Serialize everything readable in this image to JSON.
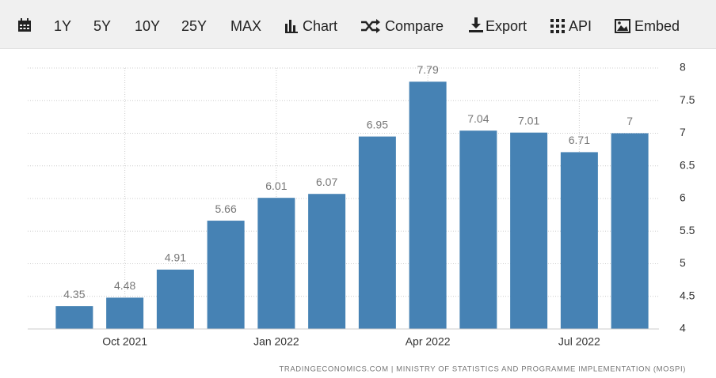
{
  "toolbar": [
    "1Y",
    "5Y",
    "10Y",
    "25Y",
    "MAX",
    "Chart",
    "Compare",
    "Export",
    "API",
    "Embed"
  ],
  "chart_data": {
    "type": "bar",
    "categories": [
      null,
      "Oct 2021",
      null,
      null,
      "Jan 2022",
      null,
      null,
      "Apr 2022",
      null,
      null,
      "Jul 2022",
      null
    ],
    "values": [
      4.35,
      4.48,
      4.91,
      5.66,
      6.01,
      6.07,
      6.95,
      7.79,
      7.04,
      7.01,
      6.71,
      7
    ],
    "color": "#4682b4",
    "ylim": [
      4,
      8
    ],
    "yticks": [
      4,
      4.5,
      5,
      5.5,
      6,
      6.5,
      7,
      7.5,
      8
    ],
    "grid": true,
    "source": "TRADINGECONOMICS.COM | MINISTRY OF STATISTICS AND PROGRAMME IMPLEMENTATION (MOSPI)"
  }
}
